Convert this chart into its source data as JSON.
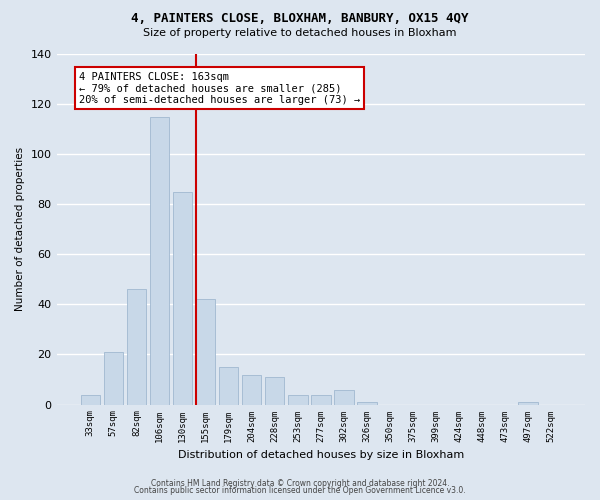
{
  "title1": "4, PAINTERS CLOSE, BLOXHAM, BANBURY, OX15 4QY",
  "title2": "Size of property relative to detached houses in Bloxham",
  "xlabel": "Distribution of detached houses by size in Bloxham",
  "ylabel": "Number of detached properties",
  "footnote1": "Contains HM Land Registry data © Crown copyright and database right 2024.",
  "footnote2": "Contains public sector information licensed under the Open Government Licence v3.0.",
  "categories": [
    "33sqm",
    "57sqm",
    "82sqm",
    "106sqm",
    "130sqm",
    "155sqm",
    "179sqm",
    "204sqm",
    "228sqm",
    "253sqm",
    "277sqm",
    "302sqm",
    "326sqm",
    "350sqm",
    "375sqm",
    "399sqm",
    "424sqm",
    "448sqm",
    "473sqm",
    "497sqm",
    "522sqm"
  ],
  "values": [
    4,
    21,
    46,
    115,
    85,
    42,
    15,
    12,
    11,
    4,
    4,
    6,
    1,
    0,
    0,
    0,
    0,
    0,
    0,
    1,
    0
  ],
  "bar_color": "#c8d8e8",
  "bar_edgecolor": "#a0b8d0",
  "vline_x": 4.57,
  "vline_color": "#cc0000",
  "annotation_text": "4 PAINTERS CLOSE: 163sqm\n← 79% of detached houses are smaller (285)\n20% of semi-detached houses are larger (73) →",
  "annotation_box_color": "#ffffff",
  "annotation_box_edgecolor": "#cc0000",
  "ylim": [
    0,
    140
  ],
  "yticks": [
    0,
    20,
    40,
    60,
    80,
    100,
    120,
    140
  ],
  "background_color": "#dde6f0",
  "grid_color": "#ffffff"
}
